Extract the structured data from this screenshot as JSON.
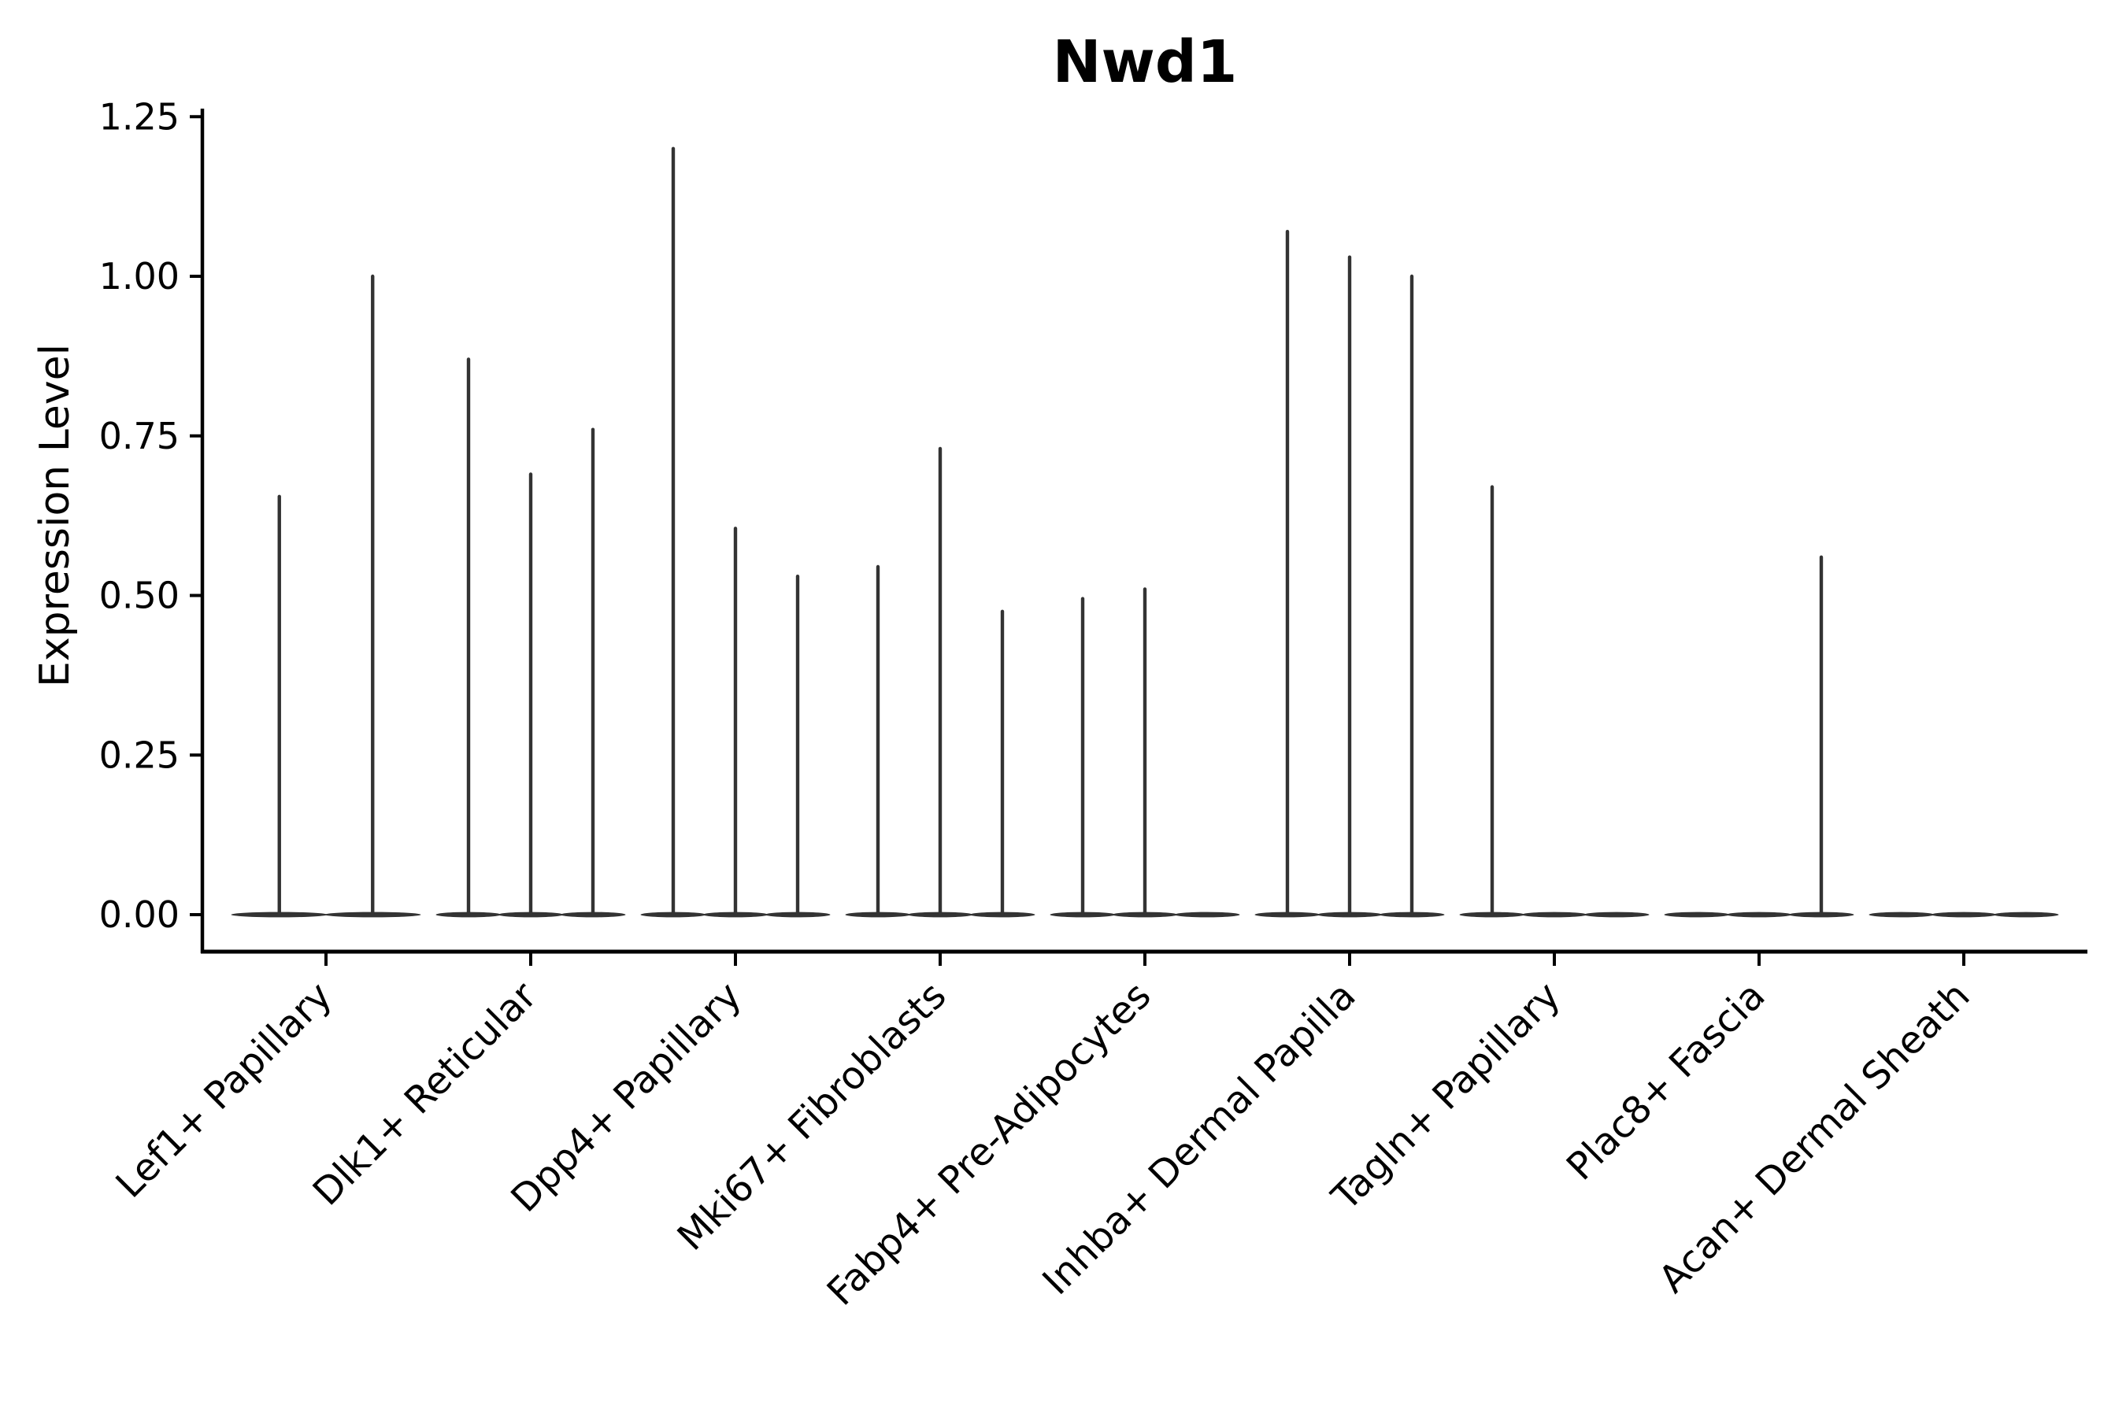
{
  "chart_data": {
    "type": "violin",
    "title": "Nwd1",
    "xlabel": "",
    "ylabel": "Expression Level",
    "ylim": [
      -0.06,
      1.26
    ],
    "grid": false,
    "legend_position": "none",
    "background_color": "#ffffff",
    "violin_color": "#333333",
    "axis_color": "#000000",
    "yticks": [
      {
        "value": 0.0,
        "label": "0.00"
      },
      {
        "value": 0.25,
        "label": "0.25"
      },
      {
        "value": 0.5,
        "label": "0.50"
      },
      {
        "value": 0.75,
        "label": "0.75"
      },
      {
        "value": 1.0,
        "label": "1.00"
      },
      {
        "value": 1.25,
        "label": "1.25"
      }
    ],
    "note": "Each category shows flat violins at expression 0 with thin density spikes marking expressing cells; spike value = peak expression level",
    "categories": [
      {
        "label": "Lef1+ Papillary",
        "slots": 2,
        "spikes": [
          {
            "slot": 0,
            "value": 0.655
          },
          {
            "slot": 1,
            "value": 1.0
          }
        ]
      },
      {
        "label": "Dlk1+ Reticular",
        "slots": 3,
        "spikes": [
          {
            "slot": 0,
            "value": 0.87
          },
          {
            "slot": 1,
            "value": 0.69
          },
          {
            "slot": 2,
            "value": 0.76
          }
        ]
      },
      {
        "label": "Dpp4+ Papillary",
        "slots": 3,
        "spikes": [
          {
            "slot": 0,
            "value": 1.2
          },
          {
            "slot": 1,
            "value": 0.605
          },
          {
            "slot": 2,
            "value": 0.53
          }
        ]
      },
      {
        "label": "Mki67+ Fibroblasts",
        "slots": 3,
        "spikes": [
          {
            "slot": 0,
            "value": 0.545
          },
          {
            "slot": 1,
            "value": 0.73
          },
          {
            "slot": 2,
            "value": 0.475
          }
        ]
      },
      {
        "label": "Fabp4+ Pre-Adipocytes",
        "slots": 3,
        "spikes": [
          {
            "slot": 0,
            "value": 0.495
          },
          {
            "slot": 1,
            "value": 0.51
          }
        ]
      },
      {
        "label": "Inhba+ Dermal Papilla",
        "slots": 3,
        "spikes": [
          {
            "slot": 0,
            "value": 1.07
          },
          {
            "slot": 1,
            "value": 1.03
          },
          {
            "slot": 2,
            "value": 1.0
          }
        ]
      },
      {
        "label": "Tagln+ Papillary",
        "slots": 3,
        "spikes": [
          {
            "slot": 0,
            "value": 0.67
          }
        ]
      },
      {
        "label": "Plac8+ Fascia",
        "slots": 3,
        "spikes": [
          {
            "slot": 2,
            "value": 0.56
          }
        ]
      },
      {
        "label": "Acan+ Dermal Sheath",
        "slots": 3,
        "spikes": []
      }
    ]
  }
}
